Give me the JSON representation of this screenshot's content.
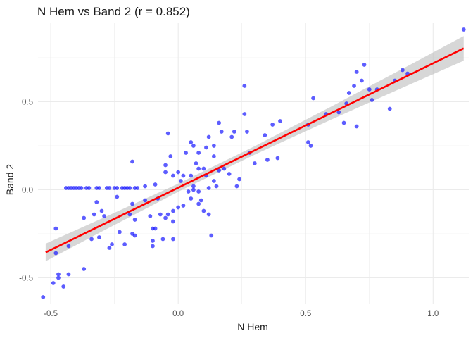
{
  "chart_data": {
    "type": "scatter",
    "title": "N Hem vs Band 2 (r = 0.852)",
    "xlabel": "N Hem",
    "ylabel": "Band 2",
    "xlim": [
      -0.55,
      1.14
    ],
    "ylim": [
      -0.65,
      0.95
    ],
    "x_ticks": [
      -0.5,
      0.0,
      0.5,
      1.0
    ],
    "x_tick_labels": [
      "-0.5",
      "0.0",
      "0.5",
      "1.0"
    ],
    "y_ticks": [
      -0.5,
      0.0,
      0.5
    ],
    "y_tick_labels": [
      "-0.5",
      "0.0",
      "0.5"
    ],
    "grid": true,
    "legend": "none",
    "colors": {
      "points": "#1f1fff",
      "fit_line": "#ff0000",
      "confidence_band": "#bdbdbd",
      "grid": "#ebebeb"
    },
    "fit": {
      "intercept": 0.0117,
      "slope": 0.7067,
      "x_range": [
        -0.52,
        1.12
      ]
    },
    "confidence_band": {
      "x": [
        -0.52,
        -0.3,
        0.0,
        0.3,
        0.6,
        0.9,
        1.12
      ],
      "half_width": [
        0.05,
        0.037,
        0.023,
        0.024,
        0.037,
        0.055,
        0.07
      ]
    },
    "points": [
      [
        -0.53,
        -0.61
      ],
      [
        -0.49,
        -0.53
      ],
      [
        -0.47,
        -0.48
      ],
      [
        -0.47,
        -0.5
      ],
      [
        -0.45,
        -0.55
      ],
      [
        -0.43,
        -0.48
      ],
      [
        -0.37,
        -0.45
      ],
      [
        -0.48,
        -0.36
      ],
      [
        -0.43,
        -0.32
      ],
      [
        -0.48,
        -0.22
      ],
      [
        -0.34,
        -0.28
      ],
      [
        -0.31,
        -0.27
      ],
      [
        -0.26,
        -0.31
      ],
      [
        -0.27,
        -0.33
      ],
      [
        -0.21,
        -0.31
      ],
      [
        -0.18,
        -0.25
      ],
      [
        -0.17,
        -0.26
      ],
      [
        -0.1,
        -0.32
      ],
      [
        -0.1,
        -0.29
      ],
      [
        -0.1,
        -0.22
      ],
      [
        -0.09,
        -0.22
      ],
      [
        -0.06,
        -0.28
      ],
      [
        -0.02,
        -0.28
      ],
      [
        -0.37,
        -0.16
      ],
      [
        -0.33,
        -0.14
      ],
      [
        -0.29,
        -0.15
      ],
      [
        -0.23,
        -0.24
      ],
      [
        -0.19,
        -0.14
      ],
      [
        -0.17,
        -0.17
      ],
      [
        -0.11,
        -0.15
      ],
      [
        -0.07,
        -0.14
      ],
      [
        -0.05,
        -0.16
      ],
      [
        -0.04,
        -0.14
      ],
      [
        -0.02,
        -0.12
      ],
      [
        -0.02,
        -0.18
      ],
      [
        0.02,
        -0.09
      ],
      [
        0.05,
        -0.05
      ],
      [
        0.08,
        -0.08
      ],
      [
        0.1,
        -0.12
      ],
      [
        0.12,
        -0.14
      ],
      [
        0.13,
        -0.26
      ],
      [
        -0.32,
        -0.07
      ],
      [
        -0.3,
        -0.12
      ],
      [
        -0.24,
        -0.04
      ],
      [
        -0.18,
        -0.08
      ],
      [
        -0.13,
        -0.06
      ],
      [
        -0.08,
        -0.05
      ],
      [
        0.0,
        -0.1
      ],
      [
        0.04,
        -0.01
      ],
      [
        0.06,
        0.02
      ],
      [
        0.08,
        -0.01
      ],
      [
        0.09,
        -0.06
      ],
      [
        0.12,
        0.01
      ],
      [
        0.15,
        0.02
      ],
      [
        -0.44,
        0.01
      ],
      [
        -0.43,
        0.01
      ],
      [
        -0.42,
        0.01
      ],
      [
        -0.41,
        0.01
      ],
      [
        -0.4,
        0.01
      ],
      [
        -0.39,
        0.01
      ],
      [
        -0.38,
        0.01
      ],
      [
        -0.36,
        0.01
      ],
      [
        -0.35,
        0.01
      ],
      [
        -0.32,
        0.01
      ],
      [
        -0.31,
        0.01
      ],
      [
        -0.28,
        0.01
      ],
      [
        -0.27,
        0.01
      ],
      [
        -0.25,
        0.01
      ],
      [
        -0.24,
        0.01
      ],
      [
        -0.22,
        0.01
      ],
      [
        -0.21,
        0.01
      ],
      [
        -0.2,
        0.01
      ],
      [
        -0.19,
        0.01
      ],
      [
        -0.17,
        0.01
      ],
      [
        -0.16,
        0.01
      ],
      [
        -0.13,
        0.02
      ],
      [
        -0.09,
        0.03
      ],
      [
        -0.05,
        0.1
      ],
      [
        -0.02,
        0.08
      ],
      [
        0.0,
        0.1
      ],
      [
        0.01,
        0.05
      ],
      [
        0.02,
        0.08
      ],
      [
        0.05,
        0.08
      ],
      [
        0.06,
        0.0
      ],
      [
        0.07,
        0.15
      ],
      [
        0.1,
        0.12
      ],
      [
        0.11,
        0.08
      ],
      [
        0.14,
        0.05
      ],
      [
        0.16,
        0.11
      ],
      [
        0.18,
        0.12
      ],
      [
        0.2,
        0.09
      ],
      [
        0.23,
        0.02
      ],
      [
        0.24,
        0.06
      ],
      [
        0.3,
        0.15
      ],
      [
        0.35,
        0.17
      ],
      [
        0.39,
        0.18
      ],
      [
        -0.18,
        0.16
      ],
      [
        -0.05,
        0.14
      ],
      [
        -0.03,
        0.19
      ],
      [
        0.03,
        0.21
      ],
      [
        0.05,
        0.27
      ],
      [
        0.06,
        0.25
      ],
      [
        0.08,
        0.21
      ],
      [
        0.08,
        0.12
      ],
      [
        0.11,
        0.24
      ],
      [
        0.12,
        0.3
      ],
      [
        0.14,
        0.25
      ],
      [
        0.14,
        0.19
      ],
      [
        0.16,
        0.38
      ],
      [
        0.17,
        0.33
      ],
      [
        0.21,
        0.3
      ],
      [
        0.22,
        0.33
      ],
      [
        0.26,
        0.43
      ],
      [
        0.28,
        0.21
      ],
      [
        -0.04,
        0.32
      ],
      [
        0.26,
        0.59
      ],
      [
        0.27,
        0.33
      ],
      [
        0.34,
        0.31
      ],
      [
        0.37,
        0.37
      ],
      [
        0.4,
        0.39
      ],
      [
        0.51,
        0.27
      ],
      [
        0.52,
        0.25
      ],
      [
        0.51,
        0.37
      ],
      [
        0.53,
        0.52
      ],
      [
        0.58,
        0.43
      ],
      [
        0.63,
        0.44
      ],
      [
        0.65,
        0.38
      ],
      [
        0.66,
        0.49
      ],
      [
        0.67,
        0.55
      ],
      [
        0.69,
        0.59
      ],
      [
        0.7,
        0.67
      ],
      [
        0.7,
        0.36
      ],
      [
        0.72,
        0.62
      ],
      [
        0.73,
        0.71
      ],
      [
        0.75,
        0.57
      ],
      [
        0.76,
        0.51
      ],
      [
        0.78,
        0.57
      ],
      [
        0.83,
        0.46
      ],
      [
        0.85,
        0.62
      ],
      [
        0.88,
        0.68
      ],
      [
        0.9,
        0.66
      ],
      [
        1.12,
        0.91
      ]
    ]
  }
}
